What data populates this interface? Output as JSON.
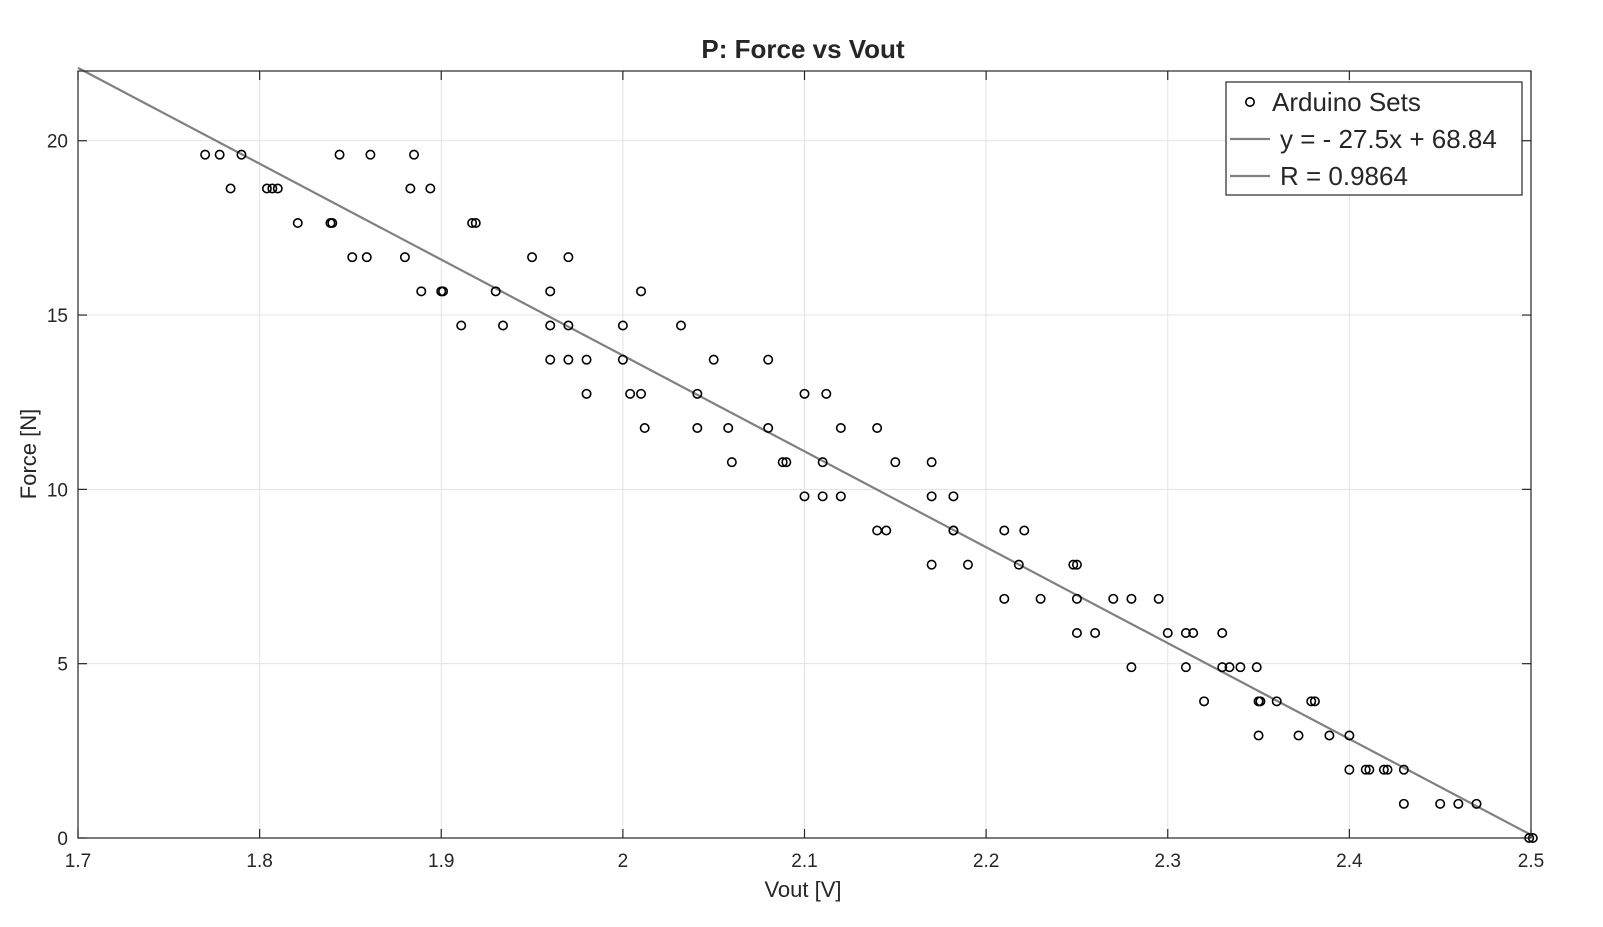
{
  "chart_data": {
    "type": "scatter",
    "title": "P: Force vs Vout",
    "xlabel": "Vout [V]",
    "ylabel": "Force [N]",
    "xlim": [
      1.7,
      2.5
    ],
    "ylim": [
      0,
      22
    ],
    "xticks": [
      1.7,
      1.8,
      1.9,
      2,
      2.1,
      2.2,
      2.3,
      2.4,
      2.5
    ],
    "xtick_labels": [
      "1.7",
      "1.8",
      "1.9",
      "2",
      "2.1",
      "2.2",
      "2.3",
      "2.4",
      "2.5"
    ],
    "yticks": [
      0,
      5,
      10,
      15,
      20
    ],
    "ytick_labels": [
      "0",
      "5",
      "10",
      "15",
      "20"
    ],
    "grid": true,
    "legend_position": "top-right",
    "colors": {
      "points": "#000000",
      "fit_line": "#808080",
      "grid": "#e3e3e3",
      "axes": "#262626"
    },
    "series": [
      {
        "name": "Arduino Sets",
        "kind": "scatter",
        "x": [
          1.77,
          1.778,
          1.79,
          1.784,
          1.804,
          1.807,
          1.81,
          1.821,
          1.839,
          1.84,
          1.844,
          1.851,
          1.859,
          1.861,
          1.88,
          1.883,
          1.885,
          1.889,
          1.894,
          1.9,
          1.901,
          1.911,
          1.917,
          1.919,
          1.93,
          1.934,
          1.95,
          1.96,
          1.96,
          1.96,
          1.97,
          1.97,
          1.97,
          1.98,
          1.98,
          2.0,
          2.0,
          2.004,
          2.01,
          2.01,
          2.012,
          2.032,
          2.041,
          2.041,
          2.05,
          2.058,
          2.06,
          2.08,
          2.08,
          2.088,
          2.09,
          2.1,
          2.1,
          2.11,
          2.11,
          2.112,
          2.12,
          2.12,
          2.14,
          2.14,
          2.145,
          2.15,
          2.17,
          2.17,
          2.17,
          2.182,
          2.182,
          2.182,
          2.19,
          2.21,
          2.21,
          2.218,
          2.221,
          2.23,
          2.248,
          2.25,
          2.25,
          2.25,
          2.26,
          2.27,
          2.28,
          2.28,
          2.295,
          2.3,
          2.31,
          2.31,
          2.314,
          2.32,
          2.33,
          2.33,
          2.334,
          2.34,
          2.349,
          2.35,
          2.351,
          2.35,
          2.36,
          2.372,
          2.379,
          2.381,
          2.389,
          2.4,
          2.4,
          2.409,
          2.411,
          2.419,
          2.421,
          2.43,
          2.43,
          2.45,
          2.46,
          2.47,
          2.499,
          2.501
        ],
        "y": [
          19.6,
          19.6,
          19.6,
          18.63,
          18.63,
          18.63,
          18.63,
          17.64,
          17.64,
          17.64,
          19.6,
          16.66,
          16.66,
          19.6,
          16.66,
          18.63,
          19.6,
          15.68,
          18.63,
          15.68,
          15.68,
          14.7,
          17.64,
          17.64,
          15.68,
          14.7,
          16.66,
          15.68,
          14.7,
          13.72,
          16.66,
          14.7,
          13.72,
          13.72,
          12.74,
          14.7,
          13.72,
          12.74,
          15.68,
          12.74,
          11.76,
          14.7,
          12.74,
          11.76,
          13.72,
          11.76,
          10.78,
          13.72,
          11.76,
          10.78,
          10.78,
          12.74,
          9.8,
          10.78,
          9.8,
          12.74,
          11.76,
          9.8,
          11.76,
          8.82,
          8.82,
          10.78,
          10.78,
          9.8,
          7.84,
          9.8,
          8.82,
          8.82,
          7.84,
          8.82,
          6.86,
          7.84,
          8.82,
          6.86,
          7.84,
          7.84,
          6.86,
          5.88,
          5.88,
          6.86,
          6.86,
          4.9,
          6.86,
          5.88,
          5.88,
          4.9,
          5.88,
          3.92,
          5.88,
          4.9,
          4.9,
          4.9,
          4.9,
          3.92,
          3.92,
          2.94,
          3.92,
          2.94,
          3.92,
          3.92,
          2.94,
          2.94,
          1.96,
          1.96,
          1.96,
          1.96,
          1.96,
          1.96,
          0.98,
          0.98,
          0.98,
          0.98,
          0,
          0
        ]
      },
      {
        "name": "y = - 27.5x + 68.84",
        "kind": "line",
        "x": [
          1.7,
          2.5
        ],
        "y": [
          22.09,
          0.09
        ]
      },
      {
        "name": "R = 0.9864",
        "kind": "legend-only"
      }
    ]
  }
}
